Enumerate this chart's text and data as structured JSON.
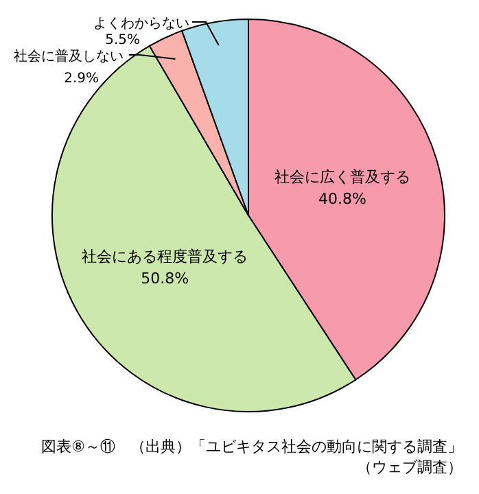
{
  "chart_data": {
    "type": "pie",
    "categories": [
      "社会に広く普及する",
      "社会にある程度普及する",
      "社会に普及しない",
      "よくわからない"
    ],
    "values": [
      40.8,
      50.8,
      2.9,
      5.5
    ],
    "value_labels": [
      "40.8%",
      "50.8%",
      "2.9%",
      "5.5%"
    ],
    "colors": [
      "#f79aab",
      "#cce8ad",
      "#f9b3ac",
      "#a6dcea"
    ],
    "annotations": [
      "図表⑧～⑪　（出典）「ユビキタス社会の動向に関する調査」",
      "（ウェブ調査）"
    ]
  }
}
